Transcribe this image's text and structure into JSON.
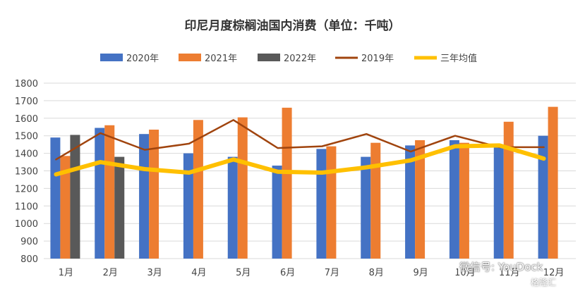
{
  "chart_data": {
    "type": "bar",
    "title": "印尼月度棕榈油国内消费（单位：千吨）",
    "categories": [
      "1月",
      "2月",
      "3月",
      "4月",
      "5月",
      "6月",
      "7月",
      "8月",
      "9月",
      "10月",
      "11月",
      "12月"
    ],
    "ylim": [
      800,
      1800
    ],
    "yticks": [
      800,
      900,
      1000,
      1100,
      1200,
      1300,
      1400,
      1500,
      1600,
      1700,
      1800
    ],
    "grid": true,
    "legend_position": "top",
    "series": [
      {
        "name": "2020年",
        "kind": "bar",
        "color": "#4472C4",
        "values": [
          1490,
          1545,
          1510,
          1400,
          1380,
          1330,
          1425,
          1380,
          1445,
          1475,
          1445,
          1500
        ]
      },
      {
        "name": "2021年",
        "kind": "bar",
        "color": "#ED7D31",
        "values": [
          1385,
          1560,
          1535,
          1590,
          1605,
          1660,
          1440,
          1460,
          1475,
          1460,
          1580,
          1665
        ]
      },
      {
        "name": "2022年",
        "kind": "bar",
        "color": "#595959",
        "values": [
          1505,
          1380,
          null,
          null,
          null,
          null,
          null,
          null,
          null,
          null,
          null,
          null
        ]
      },
      {
        "name": "2019年",
        "kind": "line",
        "color": "#A0440E",
        "values": [
          1365,
          1515,
          1420,
          1455,
          1590,
          1430,
          1440,
          1510,
          1410,
          1500,
          1435,
          1435
        ]
      },
      {
        "name": "三年均值",
        "kind": "line",
        "color": "#FFC000",
        "values": [
          1280,
          1350,
          1310,
          1290,
          1365,
          1295,
          1290,
          1320,
          1360,
          1440,
          1445,
          1370
        ]
      }
    ]
  },
  "watermark": {
    "text": "微信号: YouDock",
    "brand": "格隆汇"
  }
}
